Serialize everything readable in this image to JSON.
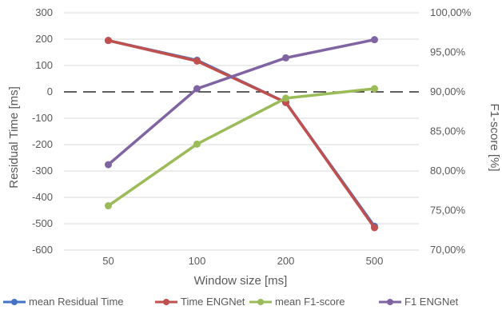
{
  "chart_data": {
    "type": "line",
    "categories": [
      "50",
      "100",
      "200",
      "500"
    ],
    "xlabel": "Window size [ms]",
    "ylabel_left": "Residual Time [ms]",
    "ylabel_right": "F1-score [%]",
    "ylim_left": [
      -600,
      300
    ],
    "ylim_right": [
      70,
      100
    ],
    "yticks_left": [
      "300",
      "200",
      "100",
      "0",
      "-100",
      "-200",
      "-300",
      "-400",
      "-500",
      "-600"
    ],
    "yticks_right": [
      "100,00%",
      "95,00%",
      "90,00%",
      "85,00%",
      "80,00%",
      "75,00%",
      "70,00%"
    ],
    "grid": true,
    "zero_line": "dashed",
    "legend_position": "bottom",
    "series": [
      {
        "name": "mean Residual Time",
        "axis": "left",
        "values": [
          195,
          120,
          -40,
          -510
        ],
        "color": "#4472C4"
      },
      {
        "name": "Time ENGNet",
        "axis": "left",
        "values": [
          195,
          117,
          -40,
          -515
        ],
        "color": "#C0504D"
      },
      {
        "name": "mean F1-score",
        "axis": "right",
        "values": [
          75.6,
          83.4,
          89.2,
          90.4
        ],
        "color": "#9BBB59"
      },
      {
        "name": "F1 ENGNet",
        "axis": "right",
        "values": [
          80.8,
          90.4,
          94.3,
          96.6
        ],
        "color": "#8064A2"
      }
    ]
  }
}
